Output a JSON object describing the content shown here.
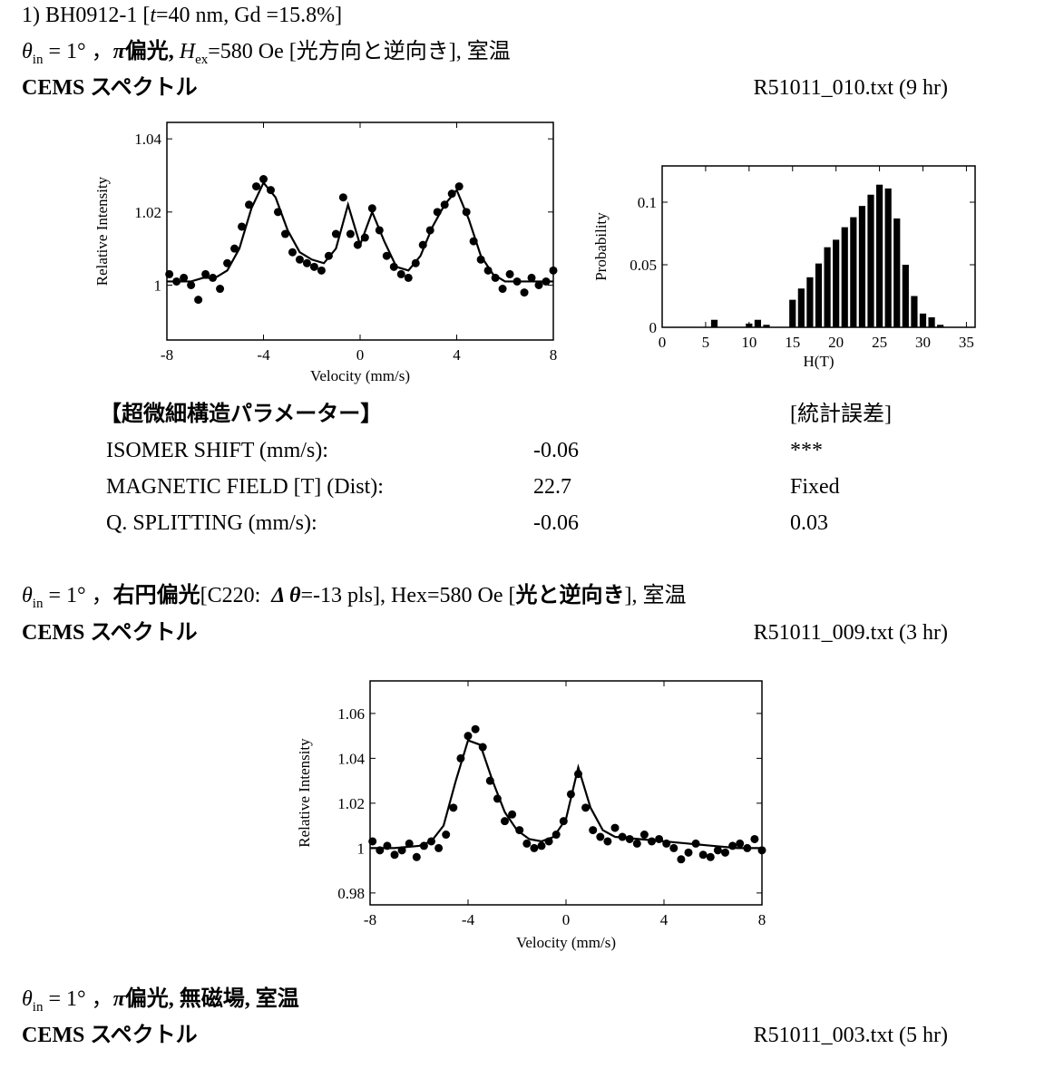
{
  "heading": [
    "1) BH0912-1 [",
    "t",
    "=40 nm, Gd =15.8%]"
  ],
  "s1": {
    "cond": [
      "θ",
      "in",
      " = 1° ，",
      "π",
      "偏光, ",
      "H",
      "ex",
      "=580 Oe [光方向と逆向き], 室温"
    ],
    "label": "CEMS スペクトル",
    "file": "R51011_010.txt (9 hr)"
  },
  "params": {
    "title": "【超微細構造パラメーター】",
    "error_title": "[統計誤差]",
    "rows": [
      [
        "ISOMER SHIFT (mm/s):",
        "-0.06",
        "***"
      ],
      [
        "MAGNETIC FIELD [T] (Dist):",
        "22.7",
        "Fixed"
      ],
      [
        "Q. SPLITTING (mm/s):",
        "-0.06",
        "0.03"
      ]
    ]
  },
  "s2": {
    "cond": [
      "θ",
      "in",
      " = 1° ，",
      "右円偏光",
      "[C220:  ",
      "Δ θ",
      "=-13 pls], Hex=580 Oe [",
      "光と逆向き",
      "], 室温"
    ],
    "label": "CEMS スペクトル",
    "file": "R51011_009.txt (3 hr)"
  },
  "s3": {
    "cond": [
      "θ",
      "in",
      " = 1° ，",
      "π",
      "偏光, 無磁場, 室温"
    ],
    "label": "CEMS スペクトル",
    "file": "R51011_003.txt (5 hr)"
  },
  "chart_data": [
    {
      "type": "scatter",
      "x_label": "Velocity (mm/s)",
      "y_label": "Relative Intensity",
      "xlim": [
        -8,
        8
      ],
      "xticks": [
        -8,
        -4,
        0,
        4,
        8
      ],
      "ylim": [
        0.985,
        1.0445
      ],
      "yticks": [
        1,
        1.02,
        1.04
      ],
      "series": [
        {
          "type": "scatter",
          "color": "#000000",
          "x": [
            -7.9,
            -7.6,
            -7.3,
            -7.0,
            -6.7,
            -6.4,
            -6.1,
            -5.8,
            -5.5,
            -5.2,
            -4.9,
            -4.6,
            -4.3,
            -4.0,
            -3.7,
            -3.4,
            -3.1,
            -2.8,
            -2.5,
            -2.2,
            -1.9,
            -1.6,
            -1.3,
            -1.0,
            -0.7,
            -0.4,
            -0.1,
            0.2,
            0.5,
            0.8,
            1.1,
            1.4,
            1.7,
            2.0,
            2.3,
            2.6,
            2.9,
            3.2,
            3.5,
            3.8,
            4.1,
            4.4,
            4.7,
            5.0,
            5.3,
            5.6,
            5.9,
            6.2,
            6.5,
            6.8,
            7.1,
            7.4,
            7.7,
            8.0
          ],
          "values": [
            1.003,
            1.001,
            1.002,
            1.0,
            0.996,
            1.003,
            1.002,
            0.999,
            1.006,
            1.01,
            1.016,
            1.022,
            1.027,
            1.029,
            1.026,
            1.02,
            1.014,
            1.009,
            1.007,
            1.006,
            1.005,
            1.004,
            1.008,
            1.014,
            1.024,
            1.014,
            1.011,
            1.013,
            1.021,
            1.015,
            1.008,
            1.005,
            1.003,
            1.002,
            1.006,
            1.011,
            1.015,
            1.02,
            1.022,
            1.025,
            1.027,
            1.02,
            1.012,
            1.007,
            1.004,
            1.002,
            0.999,
            1.003,
            1.001,
            0.998,
            1.002,
            1.0,
            1.001,
            1.004
          ]
        },
        {
          "type": "line",
          "color": "#000000",
          "x": [
            -8,
            -7.5,
            -7,
            -6.5,
            -6,
            -5.5,
            -5,
            -4.5,
            -4,
            -3.5,
            -3,
            -2.5,
            -2,
            -1.5,
            -1,
            -0.5,
            0,
            0.5,
            1,
            1.5,
            2,
            2.5,
            3,
            3.5,
            4,
            4.5,
            5,
            5.5,
            6,
            6.5,
            7,
            7.5,
            8
          ],
          "values": [
            1.001,
            1.001,
            1.001,
            1.002,
            1.002,
            1.004,
            1.01,
            1.021,
            1.028,
            1.024,
            1.015,
            1.009,
            1.007,
            1.006,
            1.01,
            1.022,
            1.011,
            1.02,
            1.012,
            1.005,
            1.004,
            1.008,
            1.016,
            1.022,
            1.026,
            1.018,
            1.008,
            1.003,
            1.001,
            1.001,
            1.001,
            1.001,
            1.001
          ]
        }
      ]
    },
    {
      "type": "bar",
      "x_label": "H(T)",
      "y_label": "Probability",
      "color": "#000000",
      "xlim": [
        0,
        36
      ],
      "xticks": [
        0,
        5,
        10,
        15,
        20,
        25,
        30,
        35
      ],
      "ylim": [
        0,
        0.129
      ],
      "yticks": [
        0,
        0.05,
        0.1
      ],
      "x": [
        6,
        10,
        11,
        12,
        15,
        16,
        17,
        18,
        19,
        20,
        21,
        22,
        23,
        24,
        25,
        26,
        27,
        28,
        29,
        30,
        31,
        32
      ],
      "values": [
        0.006,
        0.003,
        0.006,
        0.002,
        0.022,
        0.031,
        0.04,
        0.051,
        0.064,
        0.07,
        0.08,
        0.088,
        0.097,
        0.106,
        0.114,
        0.111,
        0.087,
        0.05,
        0.025,
        0.011,
        0.008,
        0.002
      ]
    },
    {
      "type": "scatter",
      "x_label": "Velocity (mm/s)",
      "y_label": "Relative Intensity",
      "xlim": [
        -8,
        8
      ],
      "xticks": [
        -8,
        -4,
        0,
        4,
        8
      ],
      "ylim": [
        0.9747,
        1.0745
      ],
      "yticks": [
        0.98,
        1,
        1.02,
        1.04,
        1.06
      ],
      "series": [
        {
          "type": "scatter",
          "color": "#000000",
          "x": [
            -7.9,
            -7.6,
            -7.3,
            -7.0,
            -6.7,
            -6.4,
            -6.1,
            -5.8,
            -5.5,
            -5.2,
            -4.9,
            -4.6,
            -4.3,
            -4.0,
            -3.7,
            -3.4,
            -3.1,
            -2.8,
            -2.5,
            -2.2,
            -1.9,
            -1.6,
            -1.3,
            -1.0,
            -0.7,
            -0.4,
            -0.1,
            0.2,
            0.5,
            0.8,
            1.1,
            1.4,
            1.7,
            2.0,
            2.3,
            2.6,
            2.9,
            3.2,
            3.5,
            3.8,
            4.1,
            4.4,
            4.7,
            5.0,
            5.3,
            5.6,
            5.9,
            6.2,
            6.5,
            6.8,
            7.1,
            7.4,
            7.7,
            8.0
          ],
          "values": [
            1.003,
            0.999,
            1.001,
            0.997,
            0.999,
            1.002,
            0.996,
            1.001,
            1.003,
            1.0,
            1.006,
            1.018,
            1.04,
            1.05,
            1.053,
            1.045,
            1.03,
            1.022,
            1.012,
            1.015,
            1.008,
            1.002,
            1.0,
            1.001,
            1.003,
            1.006,
            1.012,
            1.024,
            1.033,
            1.018,
            1.008,
            1.005,
            1.003,
            1.009,
            1.005,
            1.004,
            1.002,
            1.006,
            1.003,
            1.004,
            1.002,
            1.0,
            0.995,
            0.998,
            1.002,
            0.997,
            0.996,
            0.999,
            0.998,
            1.001,
            1.002,
            1.0,
            1.004,
            0.999
          ]
        },
        {
          "type": "line",
          "color": "#000000",
          "x": [
            -8,
            -7,
            -6,
            -5.5,
            -5,
            -4.5,
            -4,
            -3.5,
            -3,
            -2.5,
            -2,
            -1.5,
            -1,
            -0.5,
            0,
            0.5,
            1,
            1.5,
            2,
            3,
            4,
            5,
            6,
            7,
            8
          ],
          "values": [
            1.0,
            1.0,
            1.001,
            1.003,
            1.01,
            1.03,
            1.048,
            1.046,
            1.03,
            1.016,
            1.008,
            1.004,
            1.003,
            1.005,
            1.013,
            1.036,
            1.018,
            1.008,
            1.005,
            1.004,
            1.003,
            1.002,
            1.001,
            1.0,
            1.0
          ]
        }
      ]
    }
  ]
}
